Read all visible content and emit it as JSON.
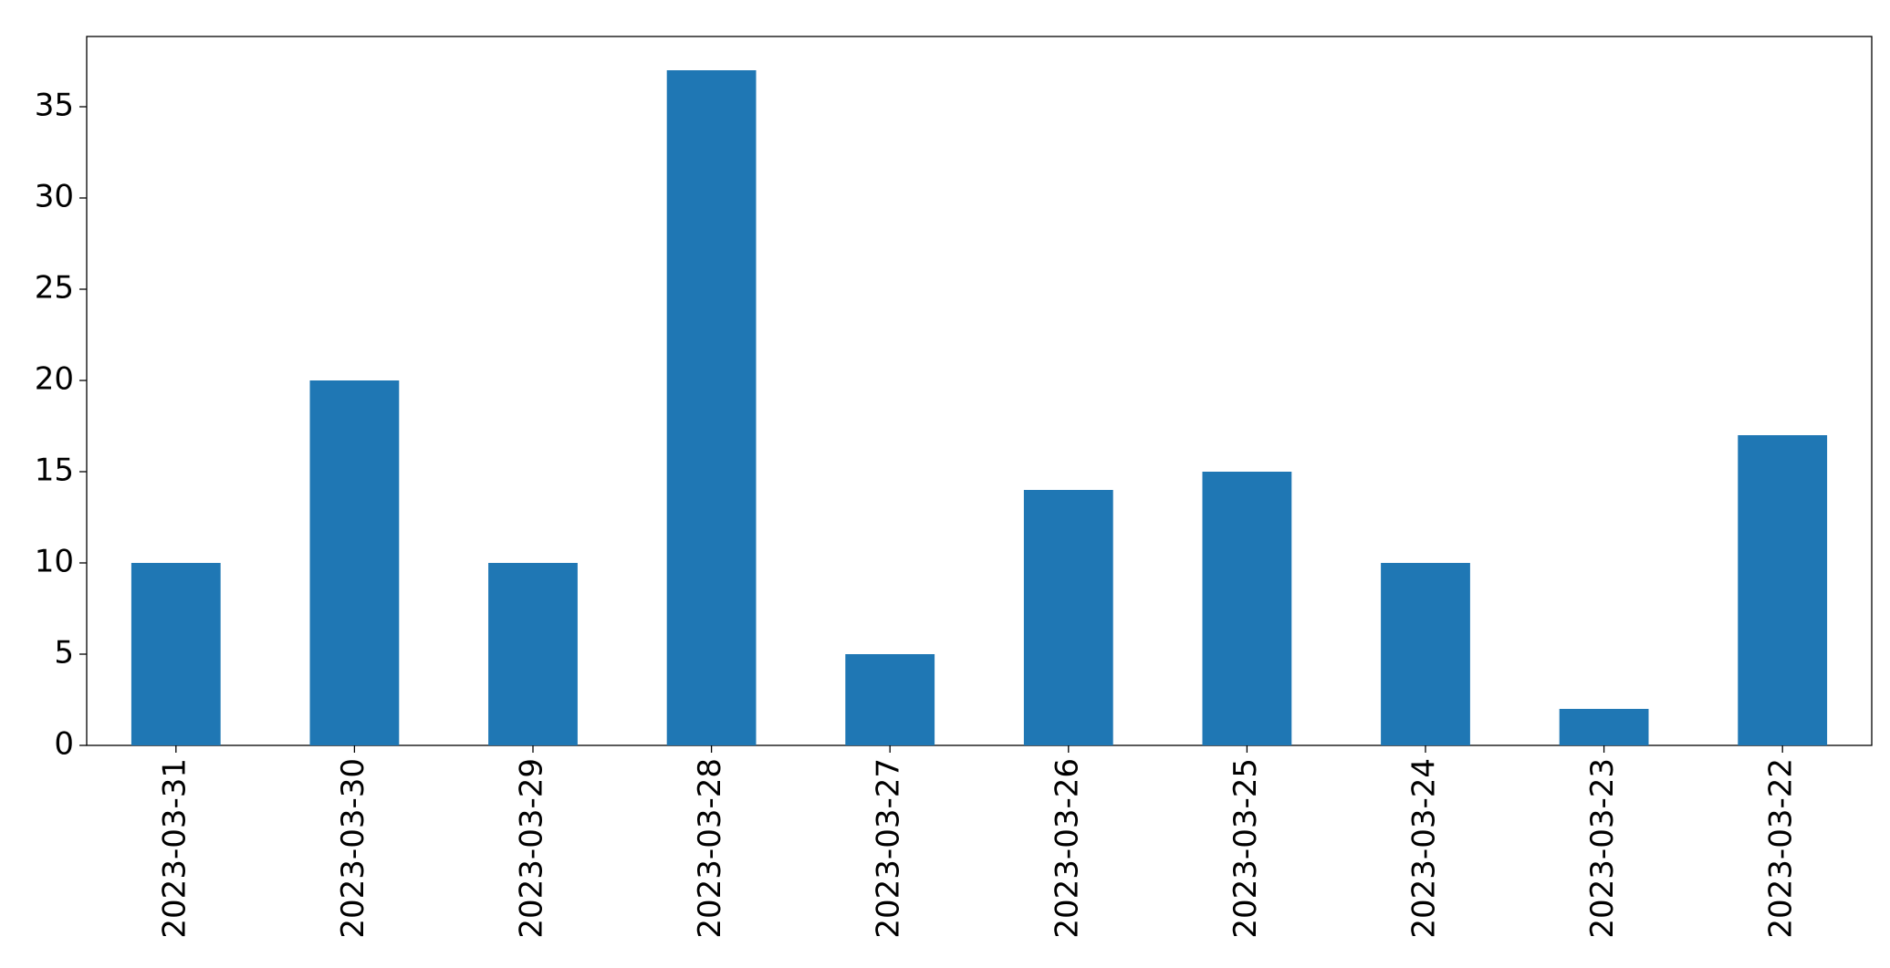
{
  "chart_data": {
    "type": "bar",
    "categories": [
      "2023-03-31",
      "2023-03-30",
      "2023-03-29",
      "2023-03-28",
      "2023-03-27",
      "2023-03-26",
      "2023-03-25",
      "2023-03-24",
      "2023-03-23",
      "2023-03-22"
    ],
    "values": [
      10,
      20,
      10,
      37,
      5,
      14,
      15,
      10,
      2,
      17
    ],
    "color": "#1f77b4",
    "ylim": [
      0,
      38.85
    ],
    "yticks": [
      0,
      5,
      10,
      15,
      20,
      25,
      30,
      35
    ],
    "grid": false
  }
}
